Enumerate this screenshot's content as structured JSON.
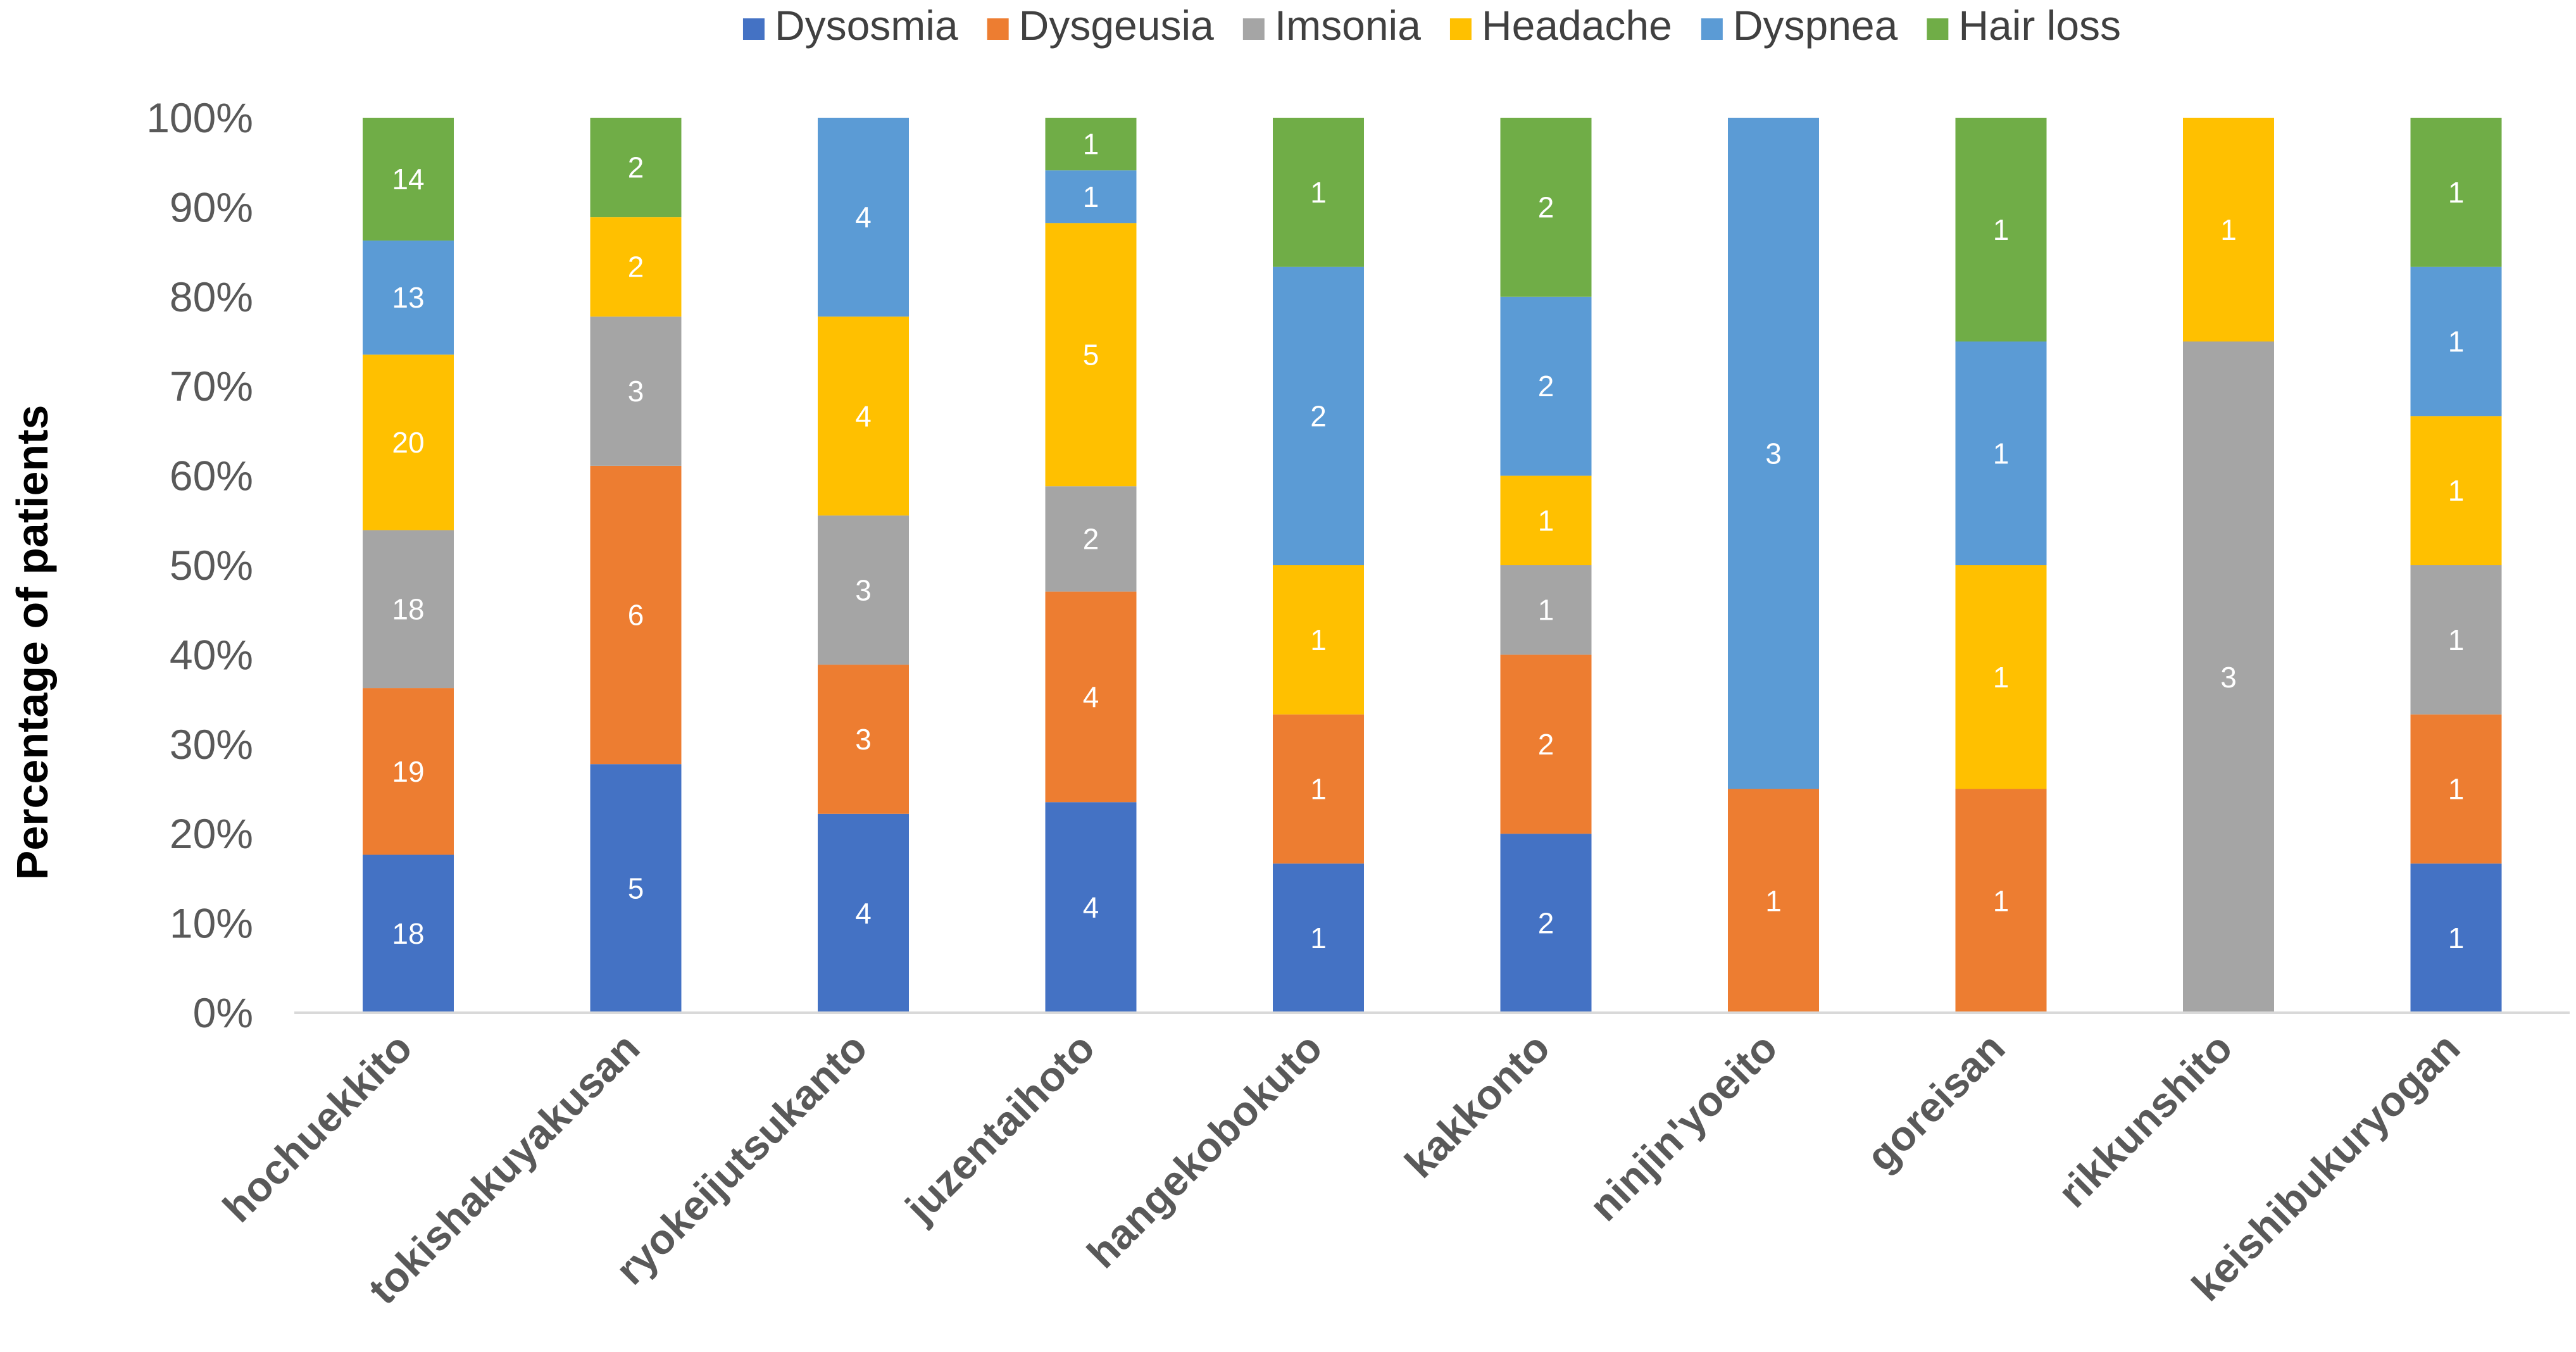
{
  "chart_data": {
    "type": "bar",
    "stacked": true,
    "normalized": true,
    "title": "",
    "xlabel": "",
    "ylabel": "Percentage of patients",
    "ylim": [
      0,
      100
    ],
    "yticks": [
      "0%",
      "10%",
      "20%",
      "30%",
      "40%",
      "50%",
      "60%",
      "70%",
      "80%",
      "90%",
      "100%"
    ],
    "grid": false,
    "legend_position": "top",
    "categories": [
      "hochuekkito",
      "tokishakuyakusan",
      "ryokeijutsukanto",
      "juzentaihoto",
      "hangekobokuto",
      "kakkonto",
      "ninjin'yoeito",
      "goreisan",
      "rikkunshito",
      "keishibukuryogan"
    ],
    "series": [
      {
        "name": "Dysosmia",
        "color": "#4472C4",
        "values": [
          18,
          5,
          4,
          4,
          1,
          2,
          0,
          0,
          0,
          1
        ]
      },
      {
        "name": "Dysgeusia",
        "color": "#ED7D31",
        "values": [
          19,
          6,
          3,
          4,
          1,
          2,
          1,
          1,
          0,
          1
        ]
      },
      {
        "name": "Imsonia",
        "color": "#A5A5A5",
        "values": [
          18,
          3,
          3,
          2,
          0,
          1,
          0,
          0,
          3,
          1
        ]
      },
      {
        "name": "Headache",
        "color": "#FFC000",
        "values": [
          20,
          2,
          4,
          5,
          1,
          1,
          0,
          1,
          1,
          1
        ]
      },
      {
        "name": "Dyspnea",
        "color": "#5B9BD5",
        "values": [
          13,
          0,
          4,
          1,
          2,
          2,
          3,
          1,
          0,
          1
        ]
      },
      {
        "name": "Hair loss",
        "color": "#70AD47",
        "values": [
          14,
          2,
          0,
          1,
          1,
          2,
          0,
          1,
          0,
          1
        ]
      }
    ]
  }
}
